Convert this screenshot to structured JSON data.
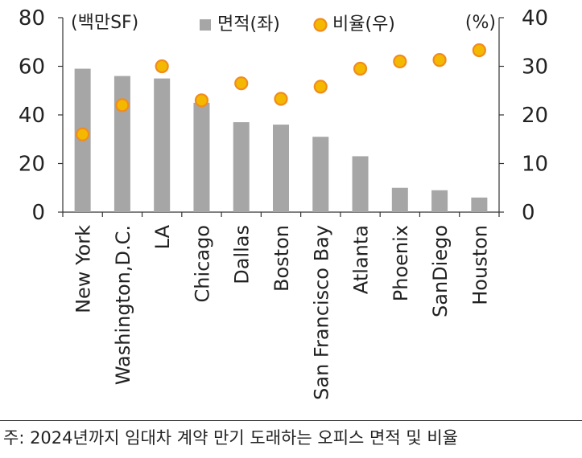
{
  "chart_data": {
    "type": "bar",
    "categories": [
      "New York",
      "Washington,D.C.",
      "LA",
      "Chicago",
      "Dallas",
      "Boston",
      "San Francisco Bay",
      "Atlanta",
      "Phoenix",
      "SanDiego",
      "Houston"
    ],
    "series": [
      {
        "name": "면적(좌)",
        "type": "bar",
        "axis": "left",
        "color": "#a6a6a6",
        "values": [
          59,
          56,
          55,
          45,
          37,
          36,
          31,
          23,
          10,
          9,
          6
        ]
      },
      {
        "name": "비율(우)",
        "type": "scatter",
        "axis": "right",
        "color": "#f5b800",
        "edge": "#f08c1e",
        "values": [
          16,
          22,
          30,
          23,
          26.5,
          23.3,
          25.8,
          29.5,
          31,
          31.3,
          33.3
        ]
      }
    ],
    "left_axis": {
      "unit_label": "(백만SF)",
      "ylim": [
        0,
        80
      ],
      "ticks": [
        "0",
        "20",
        "40",
        "60",
        "80"
      ]
    },
    "right_axis": {
      "unit_label": "(%)",
      "ylim": [
        0,
        40
      ],
      "ticks": [
        "0",
        "10",
        "20",
        "30",
        "40"
      ]
    },
    "grid": false,
    "legend_position": "top"
  },
  "footnote": "주: 2024년까지 임대차 계약 만기 도래하는 오피스 면적 및 비율"
}
